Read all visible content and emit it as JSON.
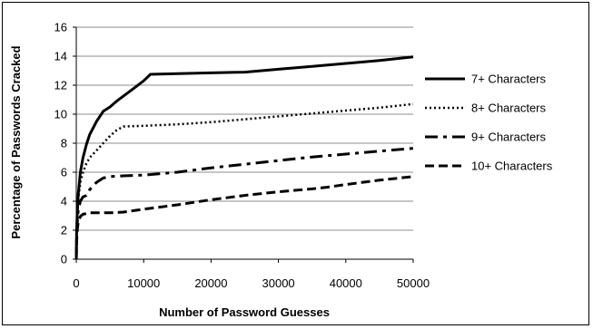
{
  "chart_data": {
    "type": "line",
    "title": "",
    "xlabel": "Number of Password Guesses",
    "ylabel": "Percentage of Passwords Cracked",
    "xlim": [
      0,
      50000
    ],
    "ylim": [
      0,
      16
    ],
    "xticks": [
      "0",
      "10000",
      "20000",
      "30000",
      "40000",
      "50000"
    ],
    "yticks": [
      "0",
      "2",
      "4",
      "6",
      "8",
      "10",
      "12",
      "14",
      "16"
    ],
    "grid": "horizontal",
    "legend_position": "right",
    "series": [
      {
        "name": "7+ Characters",
        "dash": "solid",
        "x": [
          0,
          50,
          150,
          300,
          600,
          1000,
          1500,
          2000,
          3000,
          4000,
          5000,
          6000,
          8000,
          10000,
          11000,
          15000,
          20000,
          25000,
          30000,
          35000,
          40000,
          45000,
          50000
        ],
        "y": [
          0,
          2.0,
          3.2,
          4.5,
          6.0,
          7.0,
          7.9,
          8.6,
          9.5,
          10.2,
          10.5,
          10.9,
          11.6,
          12.3,
          12.75,
          12.8,
          12.85,
          12.9,
          13.1,
          13.3,
          13.5,
          13.7,
          13.95
        ]
      },
      {
        "name": "8+ Characters",
        "dash": "dotted",
        "x": [
          0,
          50,
          150,
          300,
          600,
          1000,
          1500,
          2000,
          3000,
          4000,
          5000,
          6000,
          7000,
          10000,
          15000,
          20000,
          25000,
          30000,
          35000,
          40000,
          45000,
          50000
        ],
        "y": [
          0,
          1.8,
          3.0,
          4.2,
          5.3,
          6.0,
          6.6,
          7.0,
          7.5,
          8.0,
          8.5,
          8.9,
          9.15,
          9.2,
          9.3,
          9.45,
          9.65,
          9.85,
          10.05,
          10.25,
          10.45,
          10.7
        ]
      },
      {
        "name": "9+ Characters",
        "dash": "dashdot",
        "x": [
          0,
          50,
          150,
          300,
          600,
          1000,
          1500,
          2000,
          3000,
          4000,
          5000,
          7000,
          10000,
          15000,
          20000,
          25000,
          30000,
          35000,
          40000,
          45000,
          50000
        ],
        "y": [
          0,
          1.5,
          2.5,
          3.4,
          4.0,
          4.3,
          4.4,
          4.8,
          5.3,
          5.6,
          5.7,
          5.75,
          5.8,
          6.0,
          6.3,
          6.55,
          6.8,
          7.05,
          7.25,
          7.45,
          7.65
        ]
      },
      {
        "name": "10+ Characters",
        "dash": "dashed",
        "x": [
          0,
          50,
          150,
          300,
          600,
          1000,
          1500,
          2000,
          3000,
          5000,
          7000,
          10000,
          15000,
          20000,
          25000,
          30000,
          35000,
          37000,
          40000,
          45000,
          50000
        ],
        "y": [
          0,
          1.2,
          2.0,
          2.6,
          2.95,
          3.1,
          3.15,
          3.2,
          3.2,
          3.2,
          3.25,
          3.45,
          3.75,
          4.1,
          4.4,
          4.65,
          4.85,
          4.95,
          5.15,
          5.45,
          5.7
        ]
      }
    ]
  }
}
